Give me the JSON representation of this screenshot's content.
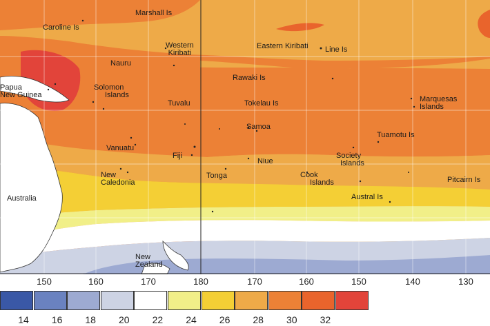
{
  "map": {
    "places": [
      {
        "id": "marshall",
        "lines": [
          "Marshall Is"
        ]
      },
      {
        "id": "caroline",
        "lines": [
          "Caroline Is"
        ]
      },
      {
        "id": "western-kiribati",
        "lines": [
          "Western",
          "Kiribati"
        ]
      },
      {
        "id": "eastern-kiribati",
        "lines": [
          "Eastern Kiribati"
        ]
      },
      {
        "id": "line",
        "lines": [
          "Line Is"
        ]
      },
      {
        "id": "nauru",
        "lines": [
          "Nauru"
        ]
      },
      {
        "id": "png",
        "lines": [
          "Papua",
          "New Guinea"
        ]
      },
      {
        "id": "solomon",
        "lines": [
          "Solomon",
          "Islands"
        ]
      },
      {
        "id": "rawaki",
        "lines": [
          "Rawaki Is"
        ]
      },
      {
        "id": "tuvalu",
        "lines": [
          "Tuvalu"
        ]
      },
      {
        "id": "tokelau",
        "lines": [
          "Tokelau Is"
        ]
      },
      {
        "id": "marquesas",
        "lines": [
          "Marquesas",
          "Islands"
        ]
      },
      {
        "id": "samoa",
        "lines": [
          "Samoa"
        ]
      },
      {
        "id": "tuamotu",
        "lines": [
          "Tuamotu Is"
        ]
      },
      {
        "id": "vanuatu",
        "lines": [
          "Vanuatu"
        ]
      },
      {
        "id": "fiji",
        "lines": [
          "Fiji"
        ]
      },
      {
        "id": "niue",
        "lines": [
          "Niue"
        ]
      },
      {
        "id": "society",
        "lines": [
          "Society",
          "Islands"
        ]
      },
      {
        "id": "new-caledonia",
        "lines": [
          "New",
          "Caledonia"
        ]
      },
      {
        "id": "tonga",
        "lines": [
          "Tonga"
        ]
      },
      {
        "id": "cook",
        "lines": [
          "Cook",
          "Islands"
        ]
      },
      {
        "id": "pitcairn",
        "lines": [
          "Pitcairn Is"
        ]
      },
      {
        "id": "australia",
        "lines": [
          "Australia"
        ]
      },
      {
        "id": "austral",
        "lines": [
          "Austral Is"
        ]
      },
      {
        "id": "new-zealand",
        "lines": [
          "New",
          "Zealand"
        ]
      }
    ],
    "longitude_labels": [
      "150",
      "160",
      "170",
      "180",
      "170",
      "160",
      "150",
      "140",
      "130"
    ]
  },
  "legend": {
    "colors": [
      "#3a58a6",
      "#6a82c0",
      "#9daad2",
      "#cdd3e4",
      "#ffffff",
      "#f1ef88",
      "#f4cf35",
      "#eeaa48",
      "#ec8136",
      "#e9642c",
      "#e2443a"
    ],
    "tick_labels": [
      "14",
      "16",
      "18",
      "20",
      "22",
      "24",
      "26",
      "28",
      "30",
      "32"
    ]
  }
}
